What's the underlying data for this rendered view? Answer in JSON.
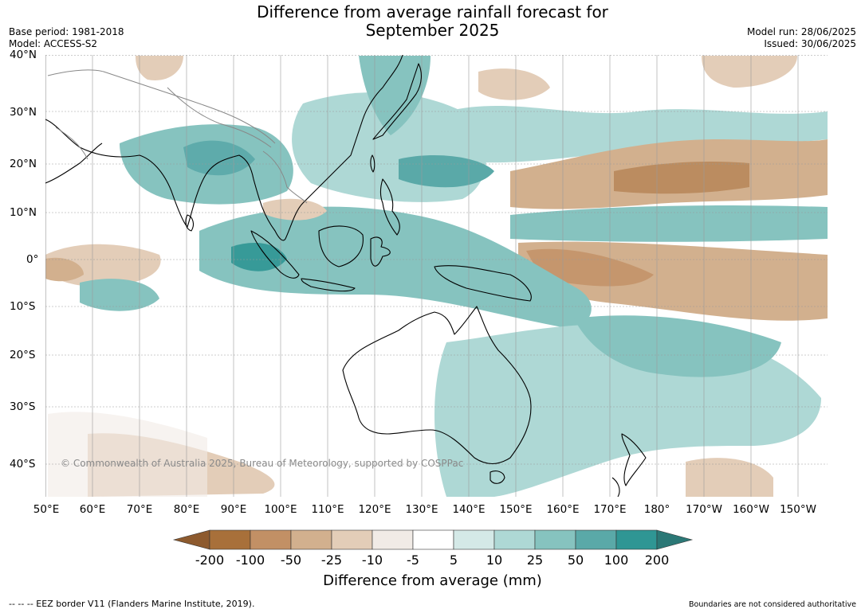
{
  "title": {
    "line1": "Difference from average rainfall forecast for",
    "line2": "September 2025"
  },
  "meta": {
    "base_period": "Base period: 1981-2018",
    "model": "Model: ACCESS-S2",
    "model_run": "Model run: 28/06/2025",
    "issued": "Issued: 30/06/2025"
  },
  "map": {
    "lat_labels": [
      "40°N",
      "30°N",
      "20°N",
      "10°N",
      "0°",
      "10°S",
      "20°S",
      "30°S",
      "40°S"
    ],
    "lon_labels": [
      "50°E",
      "60°E",
      "70°E",
      "80°E",
      "90°E",
      "100°E",
      "110°E",
      "120°E",
      "130°E",
      "140°E",
      "150°E",
      "160°E",
      "170°E",
      "180°",
      "170°W",
      "160°W",
      "150°W"
    ],
    "copyright": "© Commonwealth of Australia 2025, Bureau of Meteorology, supported by COSPPac"
  },
  "colorbar": {
    "ticks": [
      "-200",
      "-100",
      "-50",
      "-25",
      "-10",
      "-5",
      "5",
      "10",
      "25",
      "50",
      "100",
      "200"
    ],
    "colors": {
      "below_min": "#8d5a2e",
      "bins": [
        "#a8703a",
        "#c29065",
        "#d2b08e",
        "#e3cdb8",
        "#f1ebe6",
        "#ffffff",
        "#d4e9e7",
        "#aed8d5",
        "#86c3bf",
        "#5aa9a8",
        "#2f9694"
      ],
      "above_max": "#2b7876"
    },
    "title": "Difference from average (mm)"
  },
  "footer": {
    "left": "--  --  -- EEZ border V11 (Flanders Marine Institute, 2019).",
    "right": "Boundaries are not considered authoritative"
  }
}
